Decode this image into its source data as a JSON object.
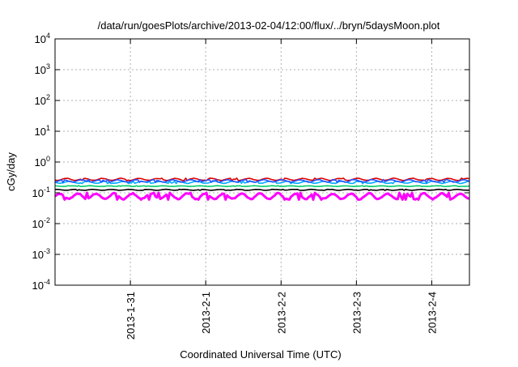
{
  "chart_data": {
    "type": "line",
    "title": "/data/run/goesPlots/archive/2013-02-04/12:00/flux/../bryn/5daysMoon.plot",
    "xlabel": "Coordinated Universal Time (UTC)",
    "ylabel": "cGy/day",
    "yscale": "log",
    "ylim": [
      0.0001,
      10000
    ],
    "xlim": [
      0.0,
      5.5
    ],
    "grid": true,
    "y_ticks": [
      {
        "mant": "10",
        "exp": "-4",
        "value": 0.0001
      },
      {
        "mant": "10",
        "exp": "-3",
        "value": 0.001
      },
      {
        "mant": "10",
        "exp": "-2",
        "value": 0.01
      },
      {
        "mant": "10",
        "exp": "-1",
        "value": 0.1
      },
      {
        "mant": "10",
        "exp": "0",
        "value": 1
      },
      {
        "mant": "10",
        "exp": "1",
        "value": 10
      },
      {
        "mant": "10",
        "exp": "2",
        "value": 100
      },
      {
        "mant": "10",
        "exp": "3",
        "value": 1000
      },
      {
        "mant": "10",
        "exp": "4",
        "value": 10000
      }
    ],
    "x_ticks": [
      {
        "label": "2013-1-31",
        "value": 1.0
      },
      {
        "label": "2013-2-1",
        "value": 2.0
      },
      {
        "label": "2013-2-2",
        "value": 3.0
      },
      {
        "label": "2013-2-3",
        "value": 4.0
      },
      {
        "label": "2013-2-4",
        "value": 5.0
      }
    ],
    "series": [
      {
        "color": "#ff00ff",
        "min": 0.06,
        "max": 0.1
      },
      {
        "color": "#000000",
        "min": 0.12,
        "max": 0.13
      },
      {
        "color": "#00cc66",
        "min": 0.16,
        "max": 0.17
      },
      {
        "color": "#00aaff",
        "min": 0.2,
        "max": 0.24
      },
      {
        "color": "#dd0000",
        "min": 0.25,
        "max": 0.3
      },
      {
        "color": "#2255ff",
        "min": 0.22,
        "max": 0.27
      }
    ]
  }
}
